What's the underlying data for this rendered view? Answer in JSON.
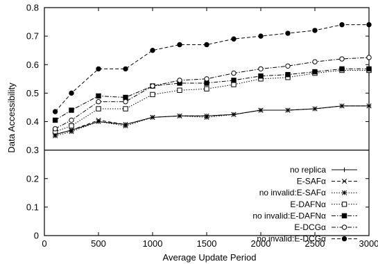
{
  "chart_data": {
    "type": "line",
    "xlabel": "Average Update Period",
    "ylabel": "Data Accessibility",
    "xlim": [
      0,
      3000
    ],
    "ylim": [
      0,
      0.8
    ],
    "x_ticks": [
      "0",
      "500",
      "1000",
      "1500",
      "2000",
      "2500",
      "3000"
    ],
    "y_ticks": [
      "0",
      "0.1",
      "0.2",
      "0.3",
      "0.4",
      "0.5",
      "0.6",
      "0.7",
      "0.8"
    ],
    "grid": false,
    "legend_position": "bottom-right",
    "x": [
      100,
      250,
      500,
      750,
      1000,
      1250,
      1500,
      1750,
      2000,
      2250,
      2500,
      2750,
      3000
    ],
    "series": [
      {
        "name": "no replica",
        "marker": "plus",
        "dash": "solid",
        "values": [
          0.355,
          0.37,
          0.4,
          0.39,
          0.415,
          0.42,
          0.42,
          0.425,
          0.44,
          0.44,
          0.445,
          0.455,
          0.455
        ]
      },
      {
        "name": "E-SAFα",
        "marker": "cross",
        "dash": "dashed",
        "values": [
          0.355,
          0.37,
          0.405,
          0.39,
          0.415,
          0.42,
          0.42,
          0.425,
          0.44,
          0.44,
          0.445,
          0.455,
          0.455
        ]
      },
      {
        "name": "no invalid:E-SAFα",
        "marker": "star",
        "dash": "dotted",
        "values": [
          0.35,
          0.365,
          0.4,
          0.385,
          0.415,
          0.42,
          0.415,
          0.425,
          0.44,
          0.44,
          0.445,
          0.455,
          0.455
        ]
      },
      {
        "name": "E-DAFNα",
        "marker": "open-square",
        "dash": "dotted",
        "values": [
          0.365,
          0.385,
          0.445,
          0.445,
          0.495,
          0.51,
          0.515,
          0.53,
          0.55,
          0.555,
          0.57,
          0.58,
          0.58
        ]
      },
      {
        "name": "no invalid:E-DAFNα",
        "marker": "filled-square",
        "dash": "dashdot",
        "values": [
          0.405,
          0.44,
          0.49,
          0.485,
          0.525,
          0.535,
          0.535,
          0.545,
          0.56,
          0.565,
          0.575,
          0.585,
          0.585
        ]
      },
      {
        "name": "E-DCGα",
        "marker": "open-circle",
        "dash": "dashdot",
        "values": [
          0.375,
          0.405,
          0.47,
          0.47,
          0.525,
          0.545,
          0.55,
          0.57,
          0.585,
          0.595,
          0.61,
          0.62,
          0.625
        ]
      },
      {
        "name": "no invalid:E-DCGα",
        "marker": "filled-circle",
        "dash": "dashed",
        "values": [
          0.435,
          0.5,
          0.585,
          0.585,
          0.65,
          0.67,
          0.67,
          0.69,
          0.7,
          0.71,
          0.72,
          0.74,
          0.74
        ]
      }
    ]
  }
}
